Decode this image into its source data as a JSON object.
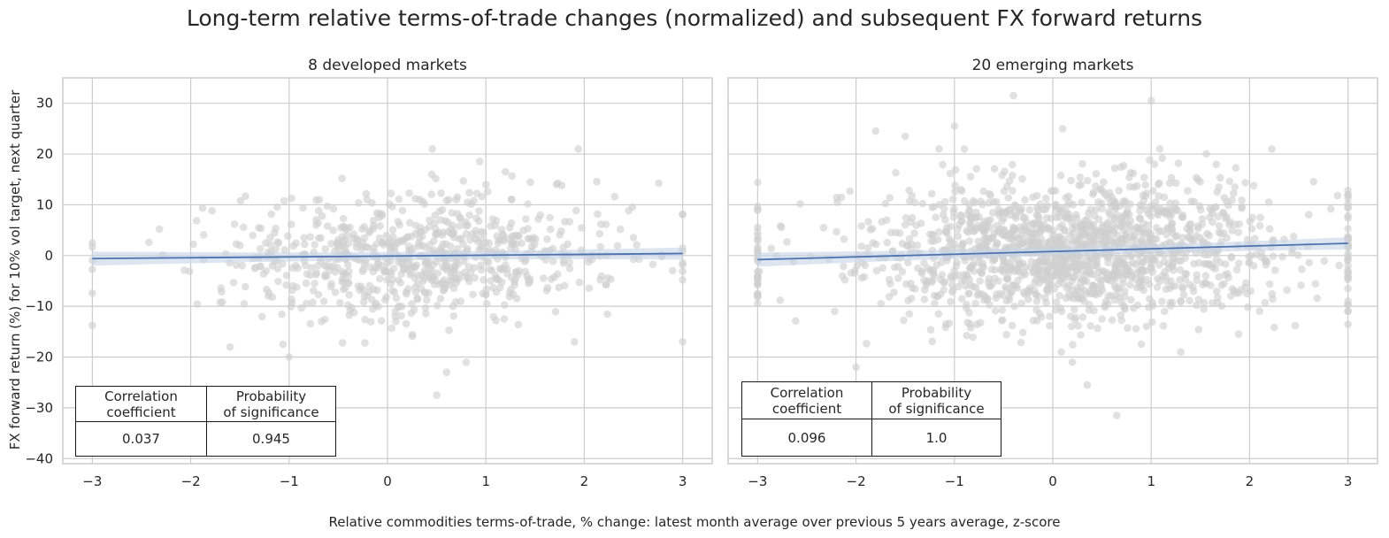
{
  "title": "Long-term relative terms-of-trade changes (normalized) and subsequent FX forward returns",
  "xlabel": "Relative commodities terms-of-trade, % change: latest month average over previous 5 years average, z-score",
  "ylabel": "FX forward return (%) for 10% vol target, next quarter",
  "colors": {
    "points": "#cfcfcf",
    "line": "#4c72b0",
    "band": "#c6d3e8",
    "grid": "#cccccc",
    "frame": "#cccccc"
  },
  "chart_data": [
    {
      "type": "scatter",
      "title": "8 developed markets",
      "xlim": [
        -3.3,
        3.3
      ],
      "ylim": [
        -41,
        35
      ],
      "xticks": [
        -3,
        -2,
        -1,
        0,
        1,
        2,
        3
      ],
      "xtick_labels": [
        "−3",
        "−2",
        "−1",
        "0",
        "1",
        "2",
        "3"
      ],
      "yticks": [
        -40,
        -30,
        -20,
        -10,
        0,
        10,
        20,
        30
      ],
      "ytick_labels": [
        "−40",
        "−30",
        "−20",
        "−10",
        "0",
        "10",
        "20",
        "30"
      ],
      "grid": true,
      "regression": {
        "x": [
          -3,
          3
        ],
        "y": [
          -0.6,
          0.4
        ]
      },
      "points": {
        "count": 780,
        "seed": 7,
        "x_mean": 0.3,
        "x_sd": 1.05,
        "y_sd": 6.0,
        "x_clip": [
          -3,
          3
        ],
        "clip_fraction": 0.015,
        "outliers": [
          [
            0.5,
            -27.5
          ],
          [
            -1.0,
            -20.0
          ],
          [
            0.8,
            -21.0
          ],
          [
            1.9,
            -17.0
          ],
          [
            3.0,
            -17.0
          ],
          [
            -1.6,
            -18.0
          ],
          [
            0.45,
            16.0
          ],
          [
            1.0,
            14.0
          ],
          [
            0.6,
            -23.0
          ]
        ]
      },
      "stats_table": {
        "headers": [
          "Correlation\ncoefficient",
          "Probability\nof significance"
        ],
        "values": [
          "0.037",
          "0.945"
        ]
      }
    },
    {
      "type": "scatter",
      "title": "20 emerging markets",
      "xlim": [
        -3.3,
        3.3
      ],
      "ylim": [
        -41,
        35
      ],
      "xticks": [
        -3,
        -2,
        -1,
        0,
        1,
        2,
        3
      ],
      "xtick_labels": [
        "−3",
        "−2",
        "−1",
        "0",
        "1",
        "2",
        "3"
      ],
      "yticks": [
        -40,
        -30,
        -20,
        -10,
        0,
        10,
        20,
        30
      ],
      "grid": true,
      "regression": {
        "x": [
          -3,
          3
        ],
        "y": [
          -0.8,
          2.4
        ]
      },
      "points": {
        "count": 1600,
        "seed": 11,
        "x_mean": 0.2,
        "x_sd": 1.05,
        "y_sd": 7.0,
        "x_clip": [
          -3,
          3
        ],
        "clip_fraction": 0.035,
        "outliers": [
          [
            -0.4,
            31.5
          ],
          [
            1.0,
            30.5
          ],
          [
            -1.0,
            25.5
          ],
          [
            0.1,
            25.0
          ],
          [
            -1.5,
            23.5
          ],
          [
            -1.8,
            24.5
          ],
          [
            0.65,
            -31.5
          ],
          [
            0.35,
            -25.5
          ],
          [
            -0.7,
            -25.5
          ],
          [
            0.2,
            -21.0
          ],
          [
            -2.0,
            -22.0
          ],
          [
            1.3,
            -19.0
          ]
        ]
      },
      "stats_table": {
        "headers": [
          "Correlation\ncoefficient",
          "Probability\nof significance"
        ],
        "values": [
          "0.096",
          "1.0"
        ]
      }
    }
  ]
}
